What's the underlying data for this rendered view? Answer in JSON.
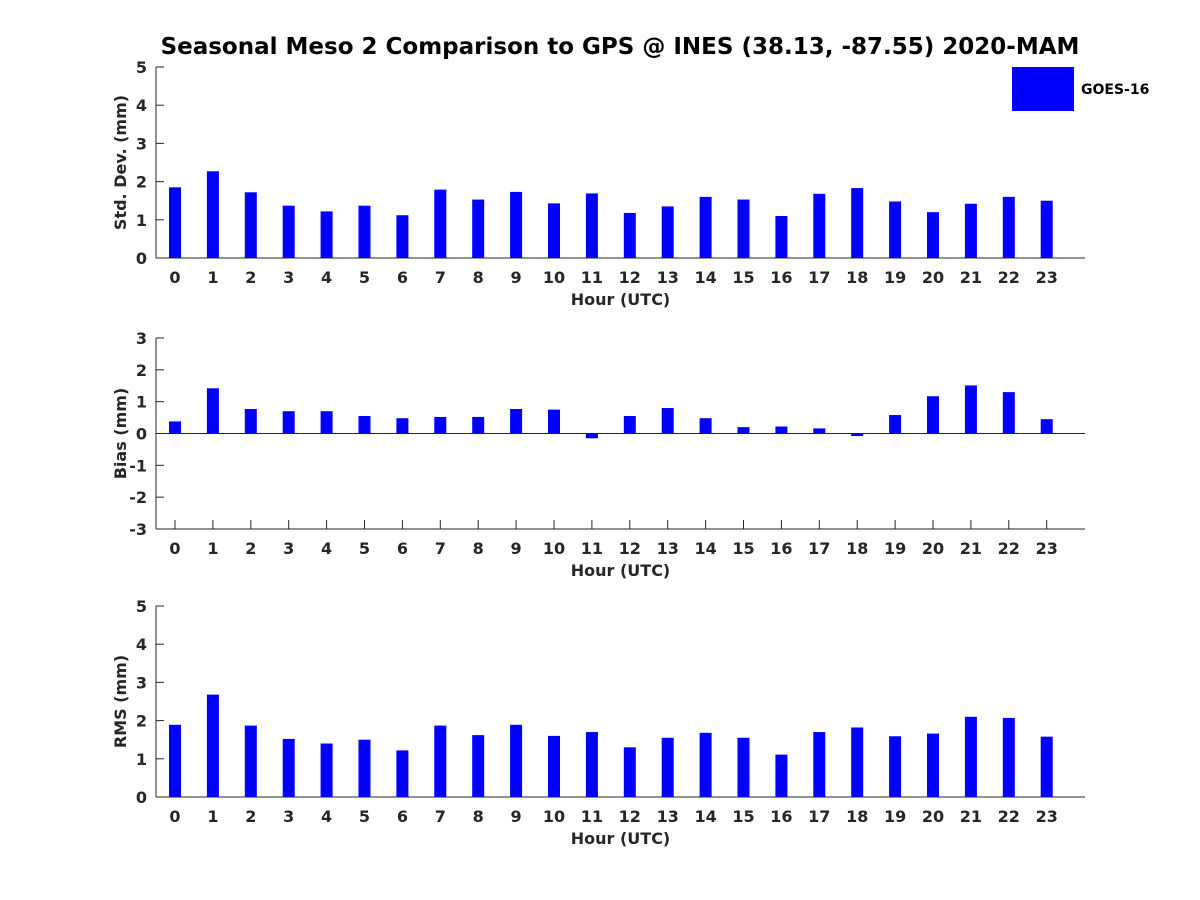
{
  "chart_data": {
    "title": "Seasonal Meso 2 Comparison to GPS @ INES (38.13, -87.55) 2020-MAM",
    "legend": {
      "label": "GOES-16",
      "color": "#0000ff",
      "placement": "top-right"
    },
    "bar_color": "#0000ff",
    "grid": false,
    "panels": [
      {
        "type": "bar",
        "xlabel": "Hour (UTC)",
        "ylabel": "Std. Dev. (mm)",
        "ylim": [
          0,
          5
        ],
        "yticks": [
          "0",
          "1",
          "2",
          "3",
          "4",
          "5"
        ],
        "categories": [
          "0",
          "1",
          "2",
          "3",
          "4",
          "5",
          "6",
          "7",
          "8",
          "9",
          "10",
          "11",
          "12",
          "13",
          "14",
          "15",
          "16",
          "17",
          "18",
          "19",
          "20",
          "21",
          "22",
          "23"
        ],
        "values": [
          1.85,
          2.27,
          1.72,
          1.37,
          1.22,
          1.37,
          1.12,
          1.79,
          1.53,
          1.73,
          1.43,
          1.69,
          1.18,
          1.35,
          1.6,
          1.53,
          1.1,
          1.68,
          1.83,
          1.48,
          1.2,
          1.42,
          1.6,
          1.5
        ]
      },
      {
        "type": "bar",
        "xlabel": "Hour (UTC)",
        "ylabel": "Bias (mm)",
        "ylim": [
          -3,
          3
        ],
        "yticks": [
          "-3",
          "-2",
          "-1",
          "0",
          "1",
          "2",
          "3"
        ],
        "categories": [
          "0",
          "1",
          "2",
          "3",
          "4",
          "5",
          "6",
          "7",
          "8",
          "9",
          "10",
          "11",
          "12",
          "13",
          "14",
          "15",
          "16",
          "17",
          "18",
          "19",
          "20",
          "21",
          "22",
          "23"
        ],
        "values": [
          0.38,
          1.42,
          0.77,
          0.7,
          0.7,
          0.55,
          0.48,
          0.52,
          0.52,
          0.77,
          0.75,
          -0.15,
          0.55,
          0.8,
          0.48,
          0.2,
          0.22,
          0.16,
          -0.08,
          0.58,
          1.17,
          1.51,
          1.3,
          0.45
        ]
      },
      {
        "type": "bar",
        "xlabel": "Hour (UTC)",
        "ylabel": "RMS (mm)",
        "ylim": [
          0,
          5
        ],
        "yticks": [
          "0",
          "1",
          "2",
          "3",
          "4",
          "5"
        ],
        "categories": [
          "0",
          "1",
          "2",
          "3",
          "4",
          "5",
          "6",
          "7",
          "8",
          "9",
          "10",
          "11",
          "12",
          "13",
          "14",
          "15",
          "16",
          "17",
          "18",
          "19",
          "20",
          "21",
          "22",
          "23"
        ],
        "values": [
          1.89,
          2.68,
          1.87,
          1.52,
          1.4,
          1.5,
          1.22,
          1.87,
          1.62,
          1.89,
          1.6,
          1.7,
          1.3,
          1.55,
          1.68,
          1.55,
          1.11,
          1.7,
          1.82,
          1.59,
          1.66,
          2.1,
          2.07,
          1.58
        ]
      }
    ]
  }
}
